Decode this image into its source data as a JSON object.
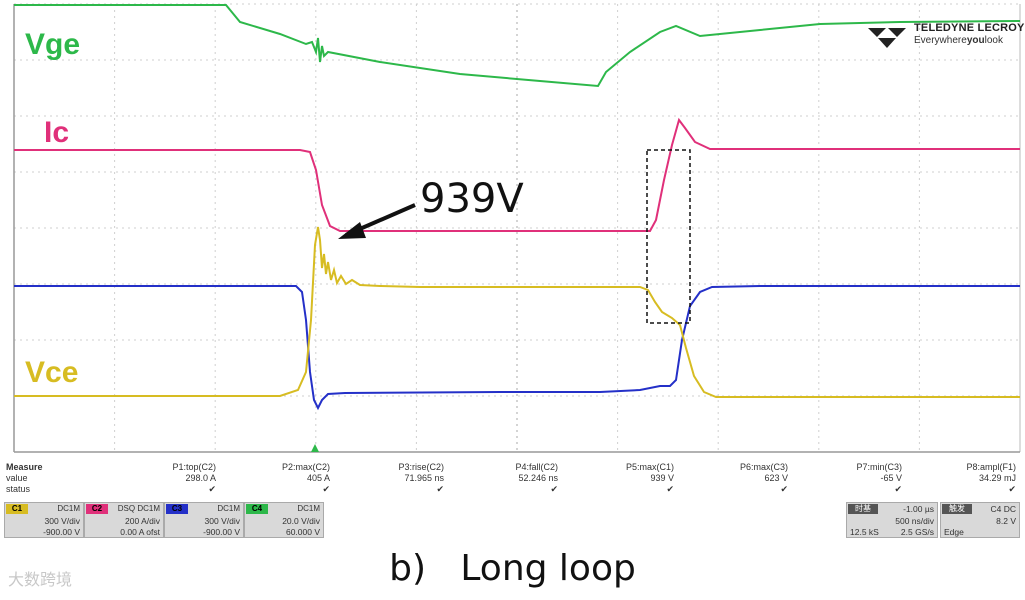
{
  "traces": {
    "vge": {
      "label": "Vge",
      "color": "#2db84a"
    },
    "ic": {
      "label": "Ic",
      "color": "#e0307a"
    },
    "vce": {
      "label": "Vce",
      "color": "#d7bc22"
    },
    "ch1": {
      "color": "#2430c8"
    }
  },
  "annotation": {
    "text": "939V"
  },
  "logo": {
    "brand": "TELEDYNE LECROY",
    "tagline_pre": "Everywhere",
    "tagline_bold": "you",
    "tagline_post": "look"
  },
  "measure": {
    "header": "Measure",
    "row_labels": [
      "value",
      "status"
    ],
    "params": [
      {
        "name": "P1:top(C2)",
        "value": "298.0 A"
      },
      {
        "name": "P2:max(C2)",
        "value": "405 A"
      },
      {
        "name": "P3:rise(C2)",
        "value": "71.965 ns"
      },
      {
        "name": "P4:fall(C2)",
        "value": "52.246 ns"
      },
      {
        "name": "P5:max(C1)",
        "value": "939 V"
      },
      {
        "name": "P6:max(C3)",
        "value": "623 V"
      },
      {
        "name": "P7:min(C3)",
        "value": "-65 V"
      },
      {
        "name": "P8:ampl(F1)",
        "value": "34.29 mJ"
      }
    ],
    "status_mark": "✔"
  },
  "channels": [
    {
      "tag": "C1",
      "coupling": "DC1M",
      "scale": "300 V/div",
      "offset": "-900.00 V",
      "color": "#d7bc22"
    },
    {
      "tag": "C2",
      "coupling": "DSQ DC1M",
      "scale": "200 A/div",
      "offset": "0.00 A ofst",
      "color": "#e0307a"
    },
    {
      "tag": "C3",
      "coupling": "DC1M",
      "scale": "300 V/div",
      "offset": "-900.00 V",
      "color": "#2430c8"
    },
    {
      "tag": "C4",
      "coupling": "DC1M",
      "scale": "20.0 V/div",
      "offset": "60.000 V",
      "color": "#2db84a"
    }
  ],
  "timebase": {
    "head": "时基",
    "delay": "-1.00 µs",
    "scale": "500 ns/div",
    "samples": "12.5 kS",
    "rate": "2.5 GS/s"
  },
  "trigger": {
    "head": "触发",
    "source": "C4 DC",
    "level": "8.2 V",
    "mode": "Edge"
  },
  "caption": "b)   Long loop",
  "watermark": "大数跨境"
}
